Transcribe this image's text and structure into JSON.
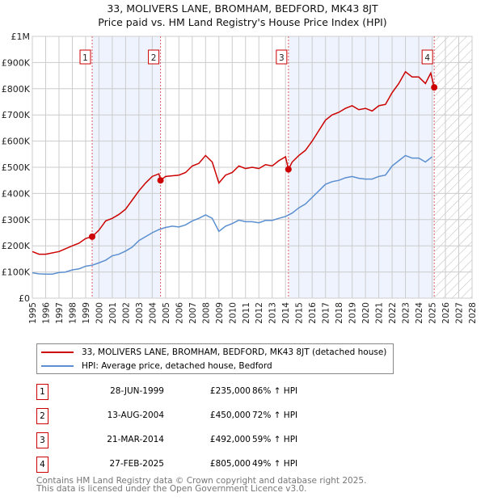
{
  "chart_data": {
    "type": "line",
    "title": "33, MOLIVERS LANE, BROMHAM, BEDFORD, MK43 8JT",
    "subtitle": "Price paid vs. HM Land Registry's House Price Index (HPI)",
    "xlim": [
      1995,
      2028
    ],
    "ylim": [
      0,
      1000000
    ],
    "x_ticks": [
      "1995",
      "1996",
      "1997",
      "1998",
      "1999",
      "2000",
      "2001",
      "2002",
      "2003",
      "2004",
      "2005",
      "2006",
      "2007",
      "2008",
      "2009",
      "2010",
      "2011",
      "2012",
      "2013",
      "2014",
      "2015",
      "2016",
      "2017",
      "2018",
      "2019",
      "2020",
      "2021",
      "2022",
      "2023",
      "2024",
      "2025",
      "2026",
      "2027",
      "2028"
    ],
    "y_ticks": [
      {
        "v": 0,
        "label": "£0"
      },
      {
        "v": 100000,
        "label": "£100K"
      },
      {
        "v": 200000,
        "label": "£200K"
      },
      {
        "v": 300000,
        "label": "£300K"
      },
      {
        "v": 400000,
        "label": "£400K"
      },
      {
        "v": 500000,
        "label": "£500K"
      },
      {
        "v": 600000,
        "label": "£600K"
      },
      {
        "v": 700000,
        "label": "£700K"
      },
      {
        "v": 800000,
        "label": "£800K"
      },
      {
        "v": 900000,
        "label": "£900K"
      },
      {
        "v": 1000000,
        "label": "£1M"
      }
    ],
    "grid": true,
    "series": [
      {
        "name": "33, MOLIVERS LANE, BROMHAM, BEDFORD, MK43 8JT (detached house)",
        "color": "#cc0000",
        "x": [
          1995,
          1995.5,
          1996,
          1997,
          1998,
          1998.5,
          1999,
          1999.49,
          2000,
          2000.5,
          2001,
          2001.5,
          2002,
          2002.5,
          2003,
          2003.5,
          2004,
          2004.5,
          2004.62,
          2005,
          2006,
          2006.5,
          2007,
          2007.5,
          2008,
          2008.5,
          2009,
          2009.5,
          2010,
          2010.5,
          2011,
          2011.5,
          2012,
          2012.5,
          2013,
          2013.5,
          2014,
          2014.22,
          2014.5,
          2015,
          2015.5,
          2016,
          2016.5,
          2017,
          2017.5,
          2018,
          2018.5,
          2019,
          2019.5,
          2020,
          2020.5,
          2021,
          2021.5,
          2022,
          2022.5,
          2023,
          2023.5,
          2024,
          2024.5,
          2024.9,
          2025.16
        ],
        "y": [
          178,
          168,
          168,
          178,
          200,
          210,
          228,
          235,
          260,
          295,
          305,
          320,
          340,
          375,
          410,
          440,
          465,
          475,
          450,
          465,
          470,
          480,
          505,
          515,
          545,
          520,
          440,
          470,
          480,
          505,
          495,
          500,
          495,
          510,
          505,
          525,
          540,
          492,
          520,
          545,
          565,
          600,
          640,
          680,
          700,
          710,
          725,
          735,
          720,
          725,
          715,
          735,
          740,
          785,
          820,
          865,
          845,
          845,
          820,
          860,
          805
        ]
      },
      {
        "name": "HPI: Average price, detached house, Bedford",
        "color": "#5b8fd0",
        "x": [
          1995,
          1995.5,
          1996,
          1996.5,
          1997,
          1997.5,
          1998,
          1998.5,
          1999,
          1999.5,
          2000,
          2000.5,
          2001,
          2001.5,
          2002,
          2002.5,
          2003,
          2003.5,
          2004,
          2004.5,
          2005,
          2005.5,
          2006,
          2006.5,
          2007,
          2007.5,
          2008,
          2008.5,
          2009,
          2009.5,
          2010,
          2010.5,
          2011,
          2011.5,
          2012,
          2012.5,
          2013,
          2013.5,
          2014,
          2014.5,
          2015,
          2015.5,
          2016,
          2016.5,
          2017,
          2017.5,
          2018,
          2018.5,
          2019,
          2019.5,
          2020,
          2020.5,
          2021,
          2021.5,
          2022,
          2022.5,
          2023,
          2023.5,
          2024,
          2024.5,
          2025
        ],
        "y": [
          97,
          93,
          92,
          92,
          98,
          100,
          108,
          112,
          122,
          126,
          135,
          145,
          162,
          168,
          180,
          195,
          220,
          235,
          250,
          262,
          270,
          275,
          272,
          280,
          295,
          305,
          318,
          305,
          255,
          275,
          285,
          298,
          292,
          292,
          288,
          297,
          297,
          305,
          312,
          325,
          345,
          360,
          385,
          410,
          435,
          445,
          450,
          460,
          465,
          458,
          455,
          455,
          465,
          470,
          505,
          525,
          545,
          535,
          535,
          520,
          540
        ]
      }
    ],
    "y_units": "£ thousands",
    "sales": [
      {
        "n": "1",
        "date": "28-JUN-1999",
        "price": "£235,000",
        "hpi": "86% ↑ HPI",
        "x": 1999.49,
        "y": 235
      },
      {
        "n": "2",
        "date": "13-AUG-2004",
        "price": "£450,000",
        "hpi": "72% ↑ HPI",
        "x": 2004.62,
        "y": 450
      },
      {
        "n": "3",
        "date": "21-MAR-2014",
        "price": "£492,000",
        "hpi": "59% ↑ HPI",
        "x": 2014.22,
        "y": 492
      },
      {
        "n": "4",
        "date": "27-FEB-2025",
        "price": "£805,000",
        "hpi": "49% ↑ HPI",
        "x": 2025.16,
        "y": 805
      }
    ],
    "legend_placement": "below"
  },
  "footer": [
    "Contains HM Land Registry data © Crown copyright and database right 2025.",
    "This data is licensed under the Open Government Licence v3.0."
  ]
}
